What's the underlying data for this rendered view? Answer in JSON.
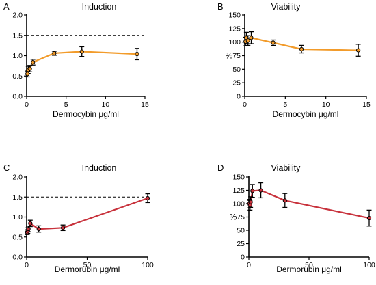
{
  "colors": {
    "dermocybin": "#f29b2a",
    "dermorubin": "#c8323c",
    "axis": "#000000",
    "marker_fill": "#ffffff"
  },
  "chart_data": [
    {
      "panel": "A",
      "type": "line",
      "title": "Induction",
      "xlabel": "Dermocybin μg/ml",
      "ylabel": "",
      "xlim": [
        0,
        15
      ],
      "ylim": [
        0,
        2.0
      ],
      "xticks": [
        0,
        5,
        10,
        15
      ],
      "yticks": [
        0.0,
        0.5,
        1.0,
        1.5,
        2.0
      ],
      "yticklabels": [
        "0.0",
        "0.5",
        "1.0",
        "1.5",
        "2.0"
      ],
      "reference_line": 1.5,
      "color": "dermocybin",
      "x": [
        0.1,
        0.2,
        0.4,
        0.8,
        3.5,
        7,
        14
      ],
      "y": [
        0.55,
        0.65,
        0.68,
        0.84,
        1.06,
        1.1,
        1.04
      ],
      "err": [
        0.07,
        0.09,
        0.08,
        0.07,
        0.05,
        0.12,
        0.14
      ]
    },
    {
      "panel": "B",
      "type": "line",
      "title": "Viability",
      "xlabel": "Dermocybin μg/ml",
      "ylabel": "%",
      "xlim": [
        0,
        15
      ],
      "ylim": [
        0,
        150
      ],
      "xticks": [
        0,
        5,
        10,
        15
      ],
      "yticks": [
        0,
        25,
        50,
        75,
        100,
        125,
        150
      ],
      "yticklabels": [
        "0",
        "25",
        "50",
        "75",
        "100",
        "125",
        "150"
      ],
      "reference_line": null,
      "color": "dermocybin",
      "x": [
        0.1,
        0.2,
        0.4,
        0.8,
        3.5,
        7,
        14
      ],
      "y": [
        101,
        108,
        103,
        108,
        99,
        87,
        85
      ],
      "err": [
        8,
        10,
        9,
        11,
        5,
        7,
        11
      ]
    },
    {
      "panel": "C",
      "type": "line",
      "title": "Induction",
      "xlabel": "Dermorubin μg/ml",
      "ylabel": "",
      "xlim": [
        0,
        100
      ],
      "ylim": [
        0,
        2.0
      ],
      "xticks": [
        0,
        50,
        100
      ],
      "yticks": [
        0.0,
        0.5,
        1.0,
        1.5,
        2.0
      ],
      "yticklabels": [
        "0.0",
        "0.5",
        "1.0",
        "1.5",
        "2.0"
      ],
      "reference_line": 1.5,
      "color": "dermorubin",
      "x": [
        0.5,
        1,
        1.5,
        3,
        10,
        30,
        100
      ],
      "y": [
        0.62,
        0.66,
        0.7,
        0.84,
        0.7,
        0.73,
        1.47
      ],
      "err": [
        0.06,
        0.07,
        0.07,
        0.08,
        0.08,
        0.07,
        0.11
      ]
    },
    {
      "panel": "D",
      "type": "line",
      "title": "Viability",
      "xlabel": "Dermorubin μg/ml",
      "ylabel": "%",
      "xlim": [
        0,
        100
      ],
      "ylim": [
        0,
        150
      ],
      "xticks": [
        0,
        50,
        100
      ],
      "yticks": [
        0,
        25,
        50,
        75,
        100,
        125,
        150
      ],
      "yticklabels": [
        "0",
        "25",
        "50",
        "75",
        "100",
        "125",
        "150"
      ],
      "reference_line": null,
      "color": "dermorubin",
      "x": [
        0.5,
        1,
        1.5,
        3,
        10,
        30,
        100
      ],
      "y": [
        100,
        97,
        103,
        124,
        125,
        106,
        73
      ],
      "err": [
        8,
        9,
        10,
        12,
        14,
        13,
        15
      ]
    }
  ]
}
